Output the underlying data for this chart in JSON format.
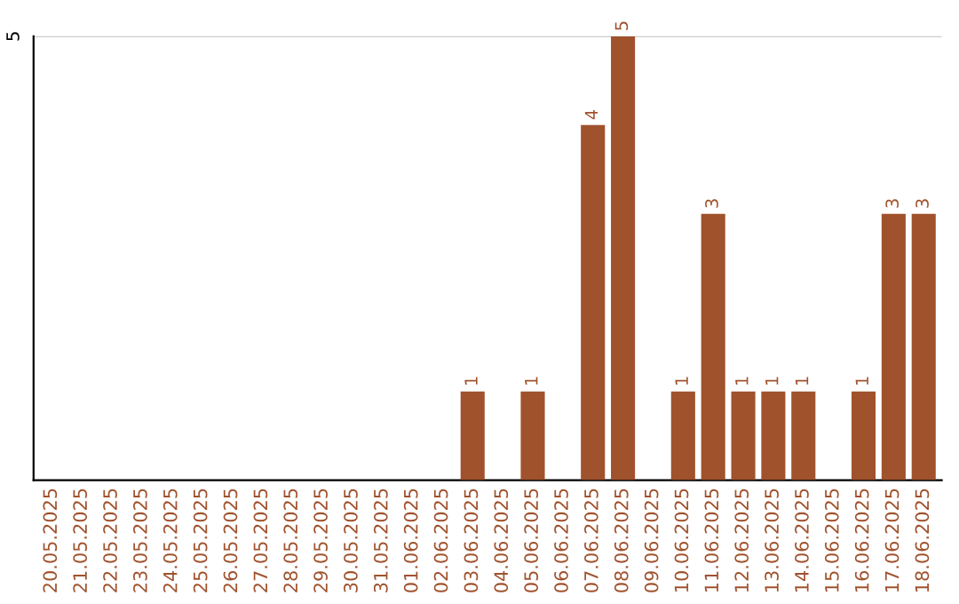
{
  "chart_data": {
    "type": "bar",
    "categories": [
      "20.05.2025",
      "21.05.2025",
      "22.05.2025",
      "23.05.2025",
      "24.05.2025",
      "25.05.2025",
      "26.05.2025",
      "27.05.2025",
      "28.05.2025",
      "29.05.2025",
      "30.05.2025",
      "31.05.2025",
      "01.06.2025",
      "02.06.2025",
      "03.06.2025",
      "04.06.2025",
      "05.06.2025",
      "06.06.2025",
      "07.06.2025",
      "08.06.2025",
      "09.06.2025",
      "10.06.2025",
      "11.06.2025",
      "12.06.2025",
      "13.06.2025",
      "14.06.2025",
      "15.06.2025",
      "16.06.2025",
      "17.06.2025",
      "18.06.2025"
    ],
    "values": [
      null,
      null,
      null,
      null,
      null,
      null,
      null,
      null,
      null,
      null,
      null,
      null,
      null,
      null,
      1,
      null,
      1,
      null,
      4,
      5,
      null,
      1,
      3,
      1,
      1,
      1,
      null,
      1,
      3,
      3
    ],
    "data_labels": true,
    "color": "#a0522d",
    "ylim": [
      0,
      5
    ],
    "ref_lines": [
      {
        "axis": "y",
        "value": 5,
        "label": "5",
        "color": "#cccccc"
      }
    ]
  }
}
